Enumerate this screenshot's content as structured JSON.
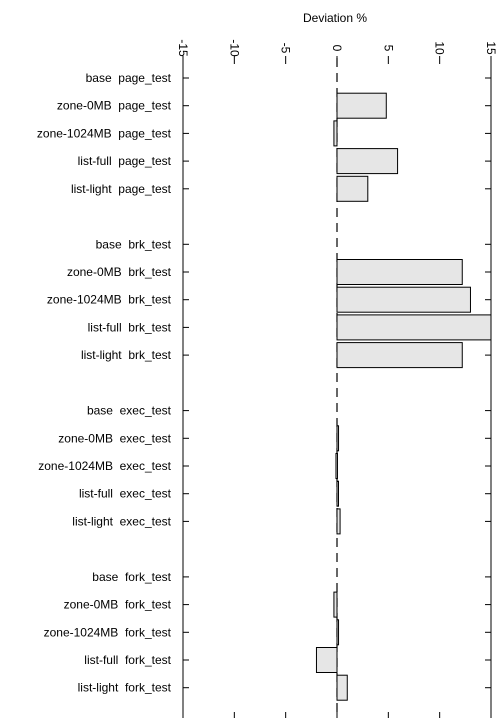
{
  "chart_data": {
    "type": "bar",
    "orientation": "horizontal",
    "title": "",
    "xlabel": "Deviation %",
    "ylabel": "",
    "xlim": [
      -15,
      15
    ],
    "x_ticks": [
      -15,
      -10,
      -5,
      0,
      5,
      10,
      15
    ],
    "x_tick_labels": [
      "-15",
      "-10",
      "-5",
      "0",
      "5",
      "10",
      "15"
    ],
    "tick_label_rotation": "90° clockwise",
    "grid": false,
    "legend": "none",
    "zero_line_style": "dashed",
    "colors": {
      "bar_fill": "#e6e6e6",
      "bar_stroke": "#000000",
      "axis": "#000000"
    },
    "categories": [
      "base page_test",
      "zone-0MB page_test",
      "zone-1024MB page_test",
      "list-full page_test",
      "list-light page_test",
      "base brk_test",
      "zone-0MB brk_test",
      "zone-1024MB brk_test",
      "list-full brk_test",
      "list-light brk_test",
      "base exec_test",
      "zone-0MB exec_test",
      "zone-1024MB exec_test",
      "list-full exec_test",
      "list-light exec_test",
      "base fork_test",
      "zone-0MB fork_test",
      "zone-1024MB fork_test",
      "list-full fork_test",
      "list-light fork_test"
    ],
    "groups": [
      "page_test",
      "brk_test",
      "exec_test",
      "fork_test"
    ],
    "values": [
      0,
      4.8,
      -0.3,
      5.9,
      3.0,
      0,
      12.2,
      13.0,
      15.0,
      12.2,
      0,
      0.15,
      -0.1,
      0.1,
      0.3,
      0,
      -0.3,
      0.15,
      -2.0,
      1.0
    ]
  }
}
